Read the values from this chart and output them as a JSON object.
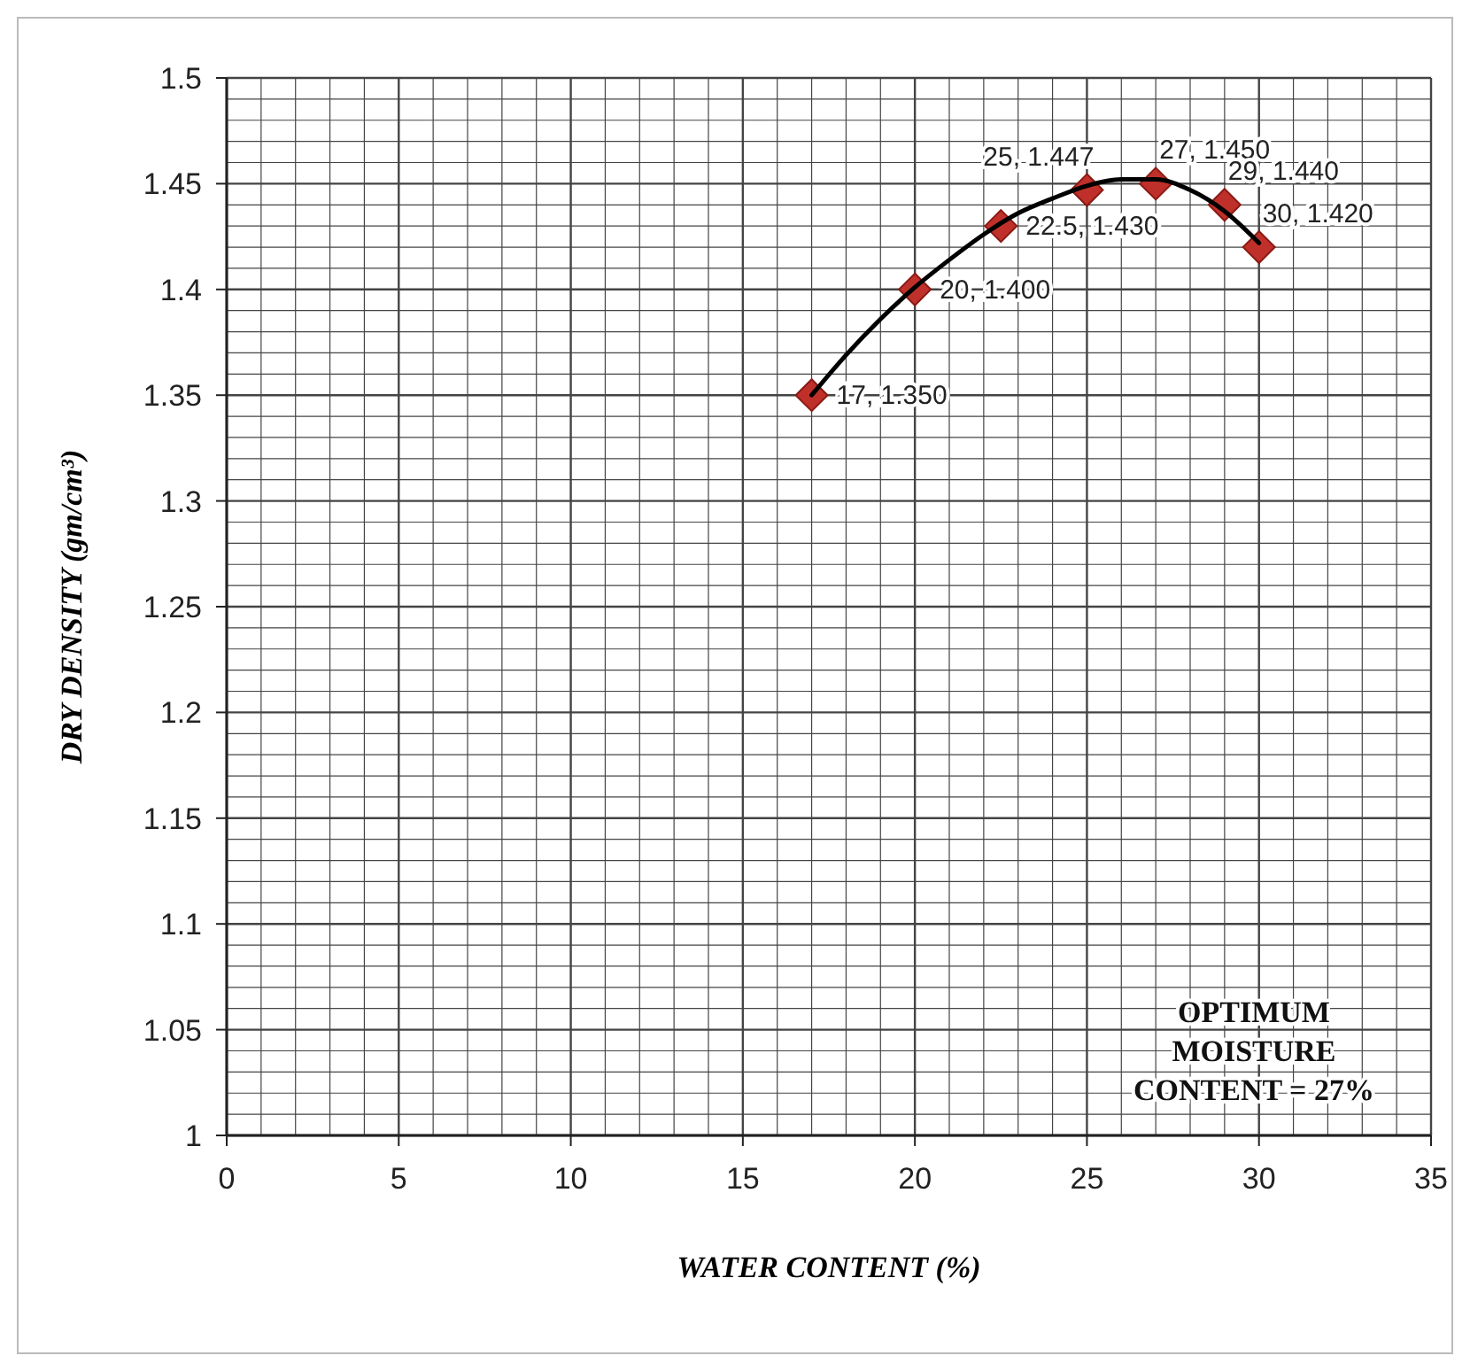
{
  "chart_data": {
    "type": "scatter",
    "xlabel": "WATER CONTENT (%)",
    "ylabel": "DRY DENSITY (gm/cm³)",
    "series": [
      {
        "color": "#c0302a",
        "marker": "diamond",
        "x": [
          17,
          20,
          22.5,
          25,
          27,
          29,
          30
        ],
        "values": [
          1.35,
          1.4,
          1.43,
          1.447,
          1.45,
          1.44,
          1.42
        ],
        "value_labels": [
          "17, 1.350",
          "20, 1.400",
          "22.5, 1.430",
          "25, 1.447",
          "27, 1.450",
          "29, 1.440",
          "30, 1.420"
        ]
      },
      {
        "type": "line",
        "color": "#000000",
        "marker": "none",
        "x": [
          17,
          18,
          19,
          20,
          21,
          22,
          23,
          24,
          25,
          26,
          27,
          28,
          29,
          30
        ],
        "values": [
          1.35,
          1.369,
          1.386,
          1.401,
          1.414,
          1.426,
          1.436,
          1.443,
          1.449,
          1.452,
          1.452,
          1.447,
          1.437,
          1.422
        ]
      }
    ],
    "xlim": [
      0,
      35
    ],
    "xticks": [
      0,
      {
        "value": 1,
        "label": null
      },
      {
        "value": 2,
        "label": null
      },
      {
        "value": 3,
        "label": null
      },
      {
        "value": 4,
        "label": null
      },
      5,
      {
        "value": 6,
        "label": null
      },
      {
        "value": 7,
        "label": null
      },
      {
        "value": 8,
        "label": null
      },
      {
        "value": 9,
        "label": null
      },
      10,
      {
        "value": 11,
        "label": null
      },
      {
        "value": 12,
        "label": null
      },
      {
        "value": 13,
        "label": null
      },
      {
        "value": 14,
        "label": null
      },
      15,
      {
        "value": 16,
        "label": null
      },
      {
        "value": 17,
        "label": null
      },
      {
        "value": 18,
        "label": null
      },
      {
        "value": 19,
        "label": null
      },
      20,
      {
        "value": 21,
        "label": null
      },
      {
        "value": 22,
        "label": null
      },
      {
        "value": 23,
        "label": null
      },
      {
        "value": 24,
        "label": null
      },
      25,
      {
        "value": 26,
        "label": null
      },
      {
        "value": 27,
        "label": null
      },
      {
        "value": 28,
        "label": null
      },
      {
        "value": 29,
        "label": null
      },
      30,
      {
        "value": 31,
        "label": null
      },
      {
        "value": 32,
        "label": null
      },
      {
        "value": 33,
        "label": null
      },
      {
        "value": 34,
        "label": null
      },
      35
    ],
    "ylim": [
      1,
      1.5
    ],
    "yticks": [
      1,
      {
        "value": 1.01,
        "label": null
      },
      {
        "value": 1.02,
        "label": null
      },
      {
        "value": 1.03,
        "label": null
      },
      {
        "value": 1.04,
        "label": null
      },
      1.05,
      {
        "value": 1.06,
        "label": null
      },
      {
        "value": 1.07,
        "label": null
      },
      {
        "value": 1.08,
        "label": null
      },
      {
        "value": 1.09,
        "label": null
      },
      1.1,
      {
        "value": 1.11,
        "label": null
      },
      {
        "value": 1.12,
        "label": null
      },
      {
        "value": 1.13,
        "label": null
      },
      {
        "value": 1.14,
        "label": null
      },
      1.15,
      {
        "value": 1.16,
        "label": null
      },
      {
        "value": 1.17,
        "label": null
      },
      {
        "value": 1.18,
        "label": null
      },
      {
        "value": 1.19,
        "label": null
      },
      1.2,
      {
        "value": 1.21,
        "label": null
      },
      {
        "value": 1.22,
        "label": null
      },
      {
        "value": 1.23,
        "label": null
      },
      {
        "value": 1.24,
        "label": null
      },
      1.25,
      {
        "value": 1.26,
        "label": null
      },
      {
        "value": 1.27,
        "label": null
      },
      {
        "value": 1.28,
        "label": null
      },
      {
        "value": 1.29,
        "label": null
      },
      1.3,
      {
        "value": 1.31,
        "label": null
      },
      {
        "value": 1.32,
        "label": null
      },
      {
        "value": 1.33,
        "label": null
      },
      {
        "value": 1.34,
        "label": null
      },
      1.35,
      {
        "value": 1.36,
        "label": null
      },
      {
        "value": 1.37,
        "label": null
      },
      {
        "value": 1.38,
        "label": null
      },
      {
        "value": 1.39,
        "label": null
      },
      1.4,
      {
        "value": 1.41,
        "label": null
      },
      {
        "value": 1.42,
        "label": null
      },
      {
        "value": 1.43,
        "label": null
      },
      {
        "value": 1.44,
        "label": null
      },
      1.45,
      {
        "value": 1.46,
        "label": null
      },
      {
        "value": 1.47,
        "label": null
      },
      {
        "value": 1.48,
        "label": null
      },
      {
        "value": 1.49,
        "label": null
      },
      1.5
    ],
    "grid": true,
    "annotations": [
      "OPTIMUM\nMOISTURE\nCONTENT = 27%"
    ]
  }
}
